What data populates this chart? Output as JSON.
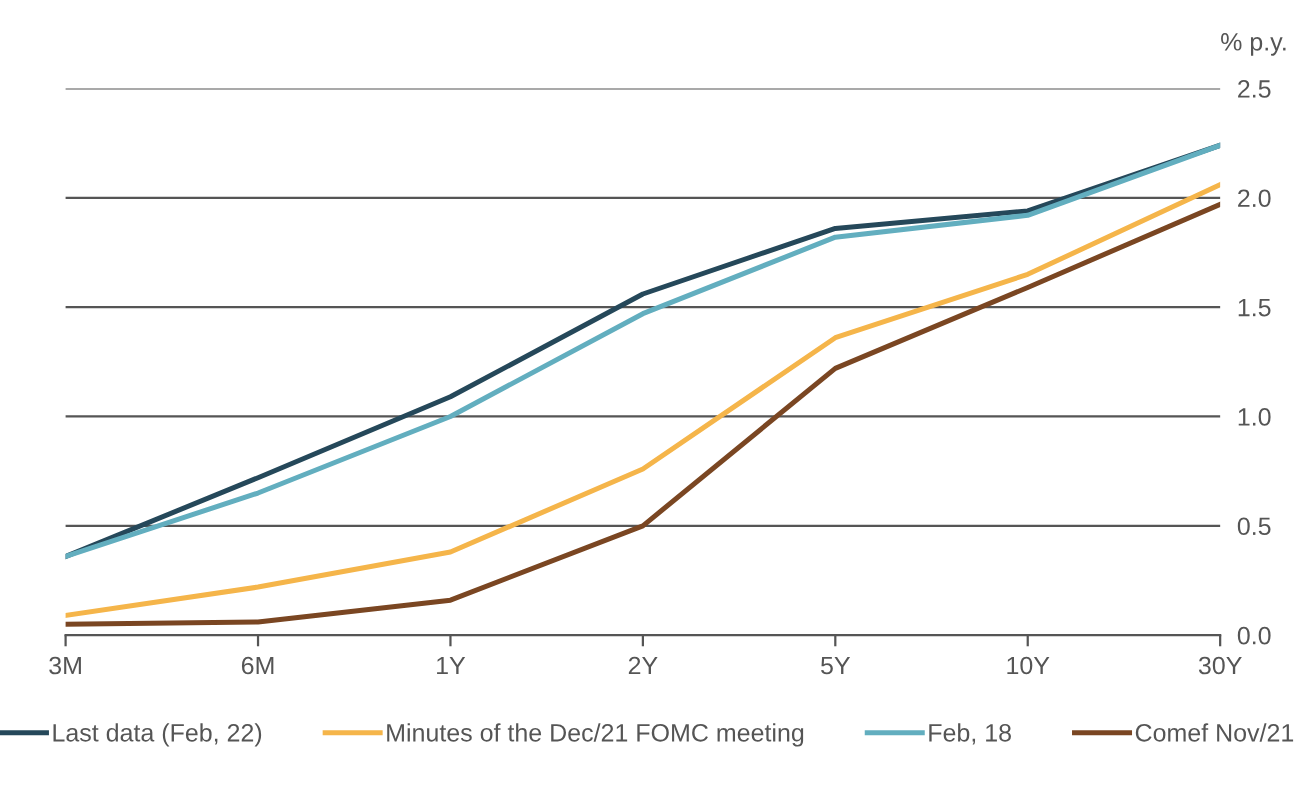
{
  "chart_data": {
    "type": "line",
    "ylabel": "% p.y.",
    "categories": [
      "3M",
      "6M",
      "1Y",
      "2Y",
      "5Y",
      "10Y",
      "30Y"
    ],
    "series": [
      {
        "name": "Last data (Feb, 22)",
        "color": "#25485a",
        "values": [
          0.36,
          0.72,
          1.09,
          1.56,
          1.86,
          1.94,
          2.24
        ]
      },
      {
        "name": "Minutes of the Dec/21 FOMC meeting",
        "color": "#f5b54a",
        "values": [
          0.09,
          0.22,
          0.38,
          0.76,
          1.36,
          1.65,
          2.06
        ]
      },
      {
        "name": "Feb, 18",
        "color": "#62aebf",
        "values": [
          0.36,
          0.65,
          1.0,
          1.47,
          1.82,
          1.92,
          2.24
        ]
      },
      {
        "name": "Comef Nov/21",
        "color": "#7a4622",
        "values": [
          0.05,
          0.06,
          0.16,
          0.5,
          1.22,
          1.59,
          1.97
        ]
      }
    ],
    "ylim": [
      0,
      2.5
    ],
    "yticks": [
      {
        "value": 0,
        "label": "0.0"
      },
      {
        "value": 0.5,
        "label": "0.5"
      },
      {
        "value": 1,
        "label": "1.0"
      },
      {
        "value": 1.5,
        "label": "1.5"
      },
      {
        "value": 2,
        "label": "2.0"
      },
      {
        "value": 2.5,
        "label": "2.5"
      }
    ],
    "grid": "y",
    "legend": "bottom",
    "marker": "none",
    "line_style": "solid"
  }
}
